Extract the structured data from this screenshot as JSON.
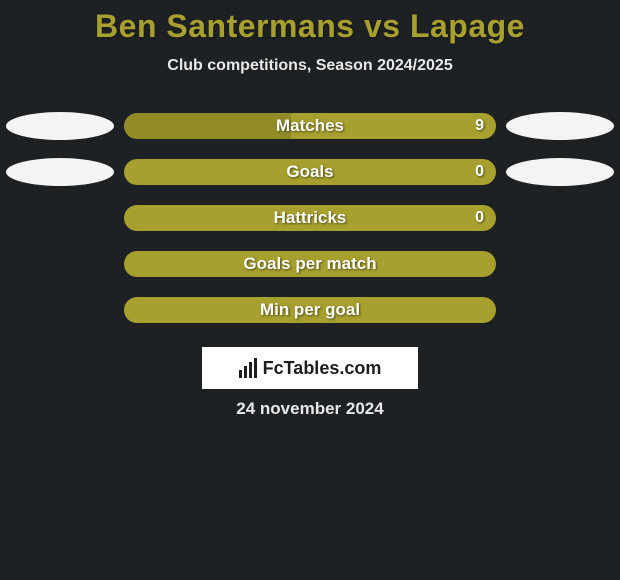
{
  "background_color": "#1e2124",
  "text_color": "#e7e8e9",
  "title_color": "#a7a02e",
  "bar_olive": "#a7a02e",
  "bar_olive_alt": "#928c28",
  "ellipse_color": "#f4f4f4",
  "brand_bg": "#ffffff",
  "brand_fg": "#1e1e1e",
  "header": {
    "title": "Ben Santermans vs Lapage",
    "subtitle": "Club competitions, Season 2024/2025"
  },
  "stats": [
    {
      "label": "Matches",
      "left_ellipse": true,
      "right_ellipse": true,
      "segments": [
        {
          "side": "left",
          "pct": 45,
          "color": "#928c28"
        },
        {
          "side": "right",
          "pct": 55,
          "color": "#a7a02e"
        }
      ],
      "left_value": null,
      "right_value": "9"
    },
    {
      "label": "Goals",
      "left_ellipse": true,
      "right_ellipse": true,
      "segments": [
        {
          "side": "full",
          "pct": 100,
          "color": "#a7a02e"
        }
      ],
      "left_value": null,
      "right_value": "0"
    },
    {
      "label": "Hattricks",
      "left_ellipse": false,
      "right_ellipse": false,
      "segments": [
        {
          "side": "full",
          "pct": 100,
          "color": "#a7a02e"
        }
      ],
      "left_value": null,
      "right_value": "0"
    },
    {
      "label": "Goals per match",
      "left_ellipse": false,
      "right_ellipse": false,
      "segments": [
        {
          "side": "full",
          "pct": 100,
          "color": "#a7a02e"
        }
      ],
      "left_value": null,
      "right_value": null
    },
    {
      "label": "Min per goal",
      "left_ellipse": false,
      "right_ellipse": false,
      "segments": [
        {
          "side": "full",
          "pct": 100,
          "color": "#a7a02e"
        }
      ],
      "left_value": null,
      "right_value": null
    }
  ],
  "brand": {
    "text": "FcTables.com"
  },
  "date_text": "24 november 2024"
}
